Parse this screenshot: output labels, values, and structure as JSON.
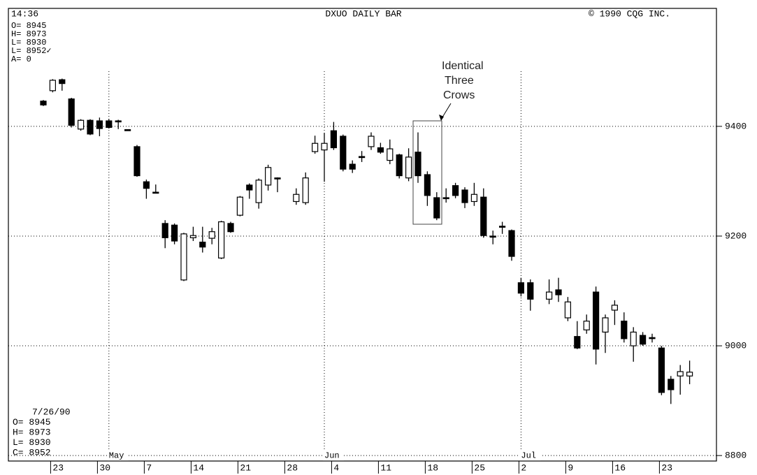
{
  "chart_data": {
    "type": "candlestick",
    "time": "14:36",
    "title": "DXUO DAILY BAR",
    "copyright": "© 1990 CQG INC.",
    "top_readout": [
      "O= 8945",
      "H= 8973",
      "L= 8930",
      "L= 8952✓",
      "A=   0"
    ],
    "bottom_readout": [
      "7/26/90",
      "O=  8945",
      "H=  8973",
      "L=  8930",
      "C=  8952"
    ],
    "annotation": [
      "Identical",
      "Three",
      "Crows"
    ],
    "categories": [
      null,
      "23",
      null,
      null,
      null,
      null,
      "30",
      null,
      null,
      null,
      null,
      "7",
      null,
      null,
      null,
      null,
      "14",
      null,
      null,
      null,
      null,
      "21",
      null,
      null,
      null,
      null,
      "28",
      null,
      null,
      null,
      null,
      "4",
      null,
      null,
      null,
      null,
      "11",
      null,
      null,
      null,
      null,
      "18",
      null,
      null,
      null,
      null,
      "25",
      null,
      null,
      null,
      null,
      "2",
      null,
      null,
      null,
      null,
      "9",
      null,
      null,
      null,
      null,
      "16",
      null,
      null,
      null,
      null,
      "23",
      null,
      null,
      null
    ],
    "month_categories": [
      null,
      null,
      null,
      null,
      null,
      null,
      null,
      "May",
      null,
      null,
      null,
      null,
      null,
      null,
      null,
      null,
      null,
      null,
      null,
      null,
      null,
      null,
      null,
      null,
      null,
      null,
      null,
      null,
      null,
      null,
      "Jun",
      null,
      null,
      null,
      null,
      null,
      null,
      null,
      null,
      null,
      null,
      null,
      null,
      null,
      null,
      null,
      null,
      null,
      null,
      null,
      null,
      "Jul",
      null,
      null,
      null,
      null,
      null,
      null,
      null,
      null,
      null,
      null,
      null,
      null,
      null,
      null,
      null,
      null,
      null,
      null
    ],
    "open": [
      9446,
      9465,
      9485,
      9450,
      9395,
      9411,
      9410,
      9410,
      9410,
      9394,
      9363,
      9299,
      9280,
      9223,
      9220,
      9120,
      9197,
      9189,
      9196,
      9160,
      9223,
      9238,
      9293,
      9261,
      9293,
      9306,
      null,
      9263,
      9261,
      9354,
      9357,
      9392,
      9382,
      9331,
      9345,
      9363,
      9361,
      9338,
      9348,
      9306,
      9353,
      9312,
      9270,
      9270,
      9292,
      9284,
      9263,
      9271,
      9200,
      9218,
      9210,
      9115,
      9115,
      null,
      9085,
      9102,
      9051,
      9017,
      9029,
      9098,
      9025,
      9065,
      9045,
      9000,
      9019,
      9015,
      8996,
      8939,
      8945,
      8945
    ],
    "high": [
      9448,
      9486,
      9487,
      9452,
      9413,
      9413,
      9416,
      9413,
      9412,
      9394,
      9366,
      9303,
      9294,
      9229,
      9223,
      9206,
      9217,
      9217,
      9215,
      9228,
      9226,
      9273,
      9296,
      9305,
      9330,
      9307,
      null,
      9287,
      9316,
      9383,
      9388,
      9408,
      9385,
      9338,
      9355,
      9389,
      9370,
      9376,
      9350,
      9360,
      9389,
      9318,
      9280,
      9287,
      9297,
      9289,
      9297,
      9287,
      9210,
      9226,
      9212,
      9124,
      9121,
      null,
      9121,
      9124,
      9089,
      9045,
      9057,
      9108,
      9057,
      9083,
      9061,
      9034,
      9025,
      9022,
      9000,
      8945,
      8965,
      8973
    ],
    "low": [
      9437,
      9462,
      9465,
      9398,
      9392,
      9384,
      9382,
      9396,
      9395,
      9392,
      9308,
      9268,
      9279,
      9178,
      9185,
      9118,
      9191,
      9170,
      9185,
      9158,
      9206,
      9236,
      9268,
      9250,
      9283,
      9280,
      null,
      9257,
      9257,
      9350,
      9299,
      9357,
      9318,
      9315,
      9335,
      9357,
      9350,
      9331,
      9305,
      9300,
      9297,
      9255,
      9229,
      9261,
      9269,
      9251,
      9255,
      9197,
      9185,
      9204,
      9155,
      9090,
      9064,
      null,
      9076,
      9080,
      9045,
      8994,
      9022,
      8966,
      8987,
      9038,
      9006,
      8971,
      9000,
      9006,
      8910,
      8894,
      8911,
      8930
    ],
    "close": [
      9439,
      9484,
      9478,
      9402,
      9411,
      9386,
      9396,
      9398,
      9410,
      9393,
      9310,
      9287,
      9279,
      9197,
      9191,
      9204,
      9201,
      9180,
      9208,
      9226,
      9208,
      9271,
      9284,
      9302,
      9325,
      9305,
      null,
      9276,
      9306,
      9369,
      9369,
      9361,
      9322,
      9322,
      9344,
      9382,
      9353,
      9359,
      9310,
      9344,
      9310,
      9274,
      9233,
      9269,
      9274,
      9261,
      9276,
      9201,
      9198,
      9217,
      9163,
      9096,
      9085,
      null,
      9098,
      9093,
      9080,
      8996,
      9045,
      8994,
      9051,
      9074,
      9013,
      9025,
      9003,
      9014,
      8915,
      8920,
      8953,
      8952
    ],
    "ylim": [
      8790,
      9615
    ],
    "yticks": [
      8800,
      9000,
      9200,
      9400
    ],
    "grid": true,
    "up_color": "#ffffff",
    "down_color": "#000000"
  }
}
